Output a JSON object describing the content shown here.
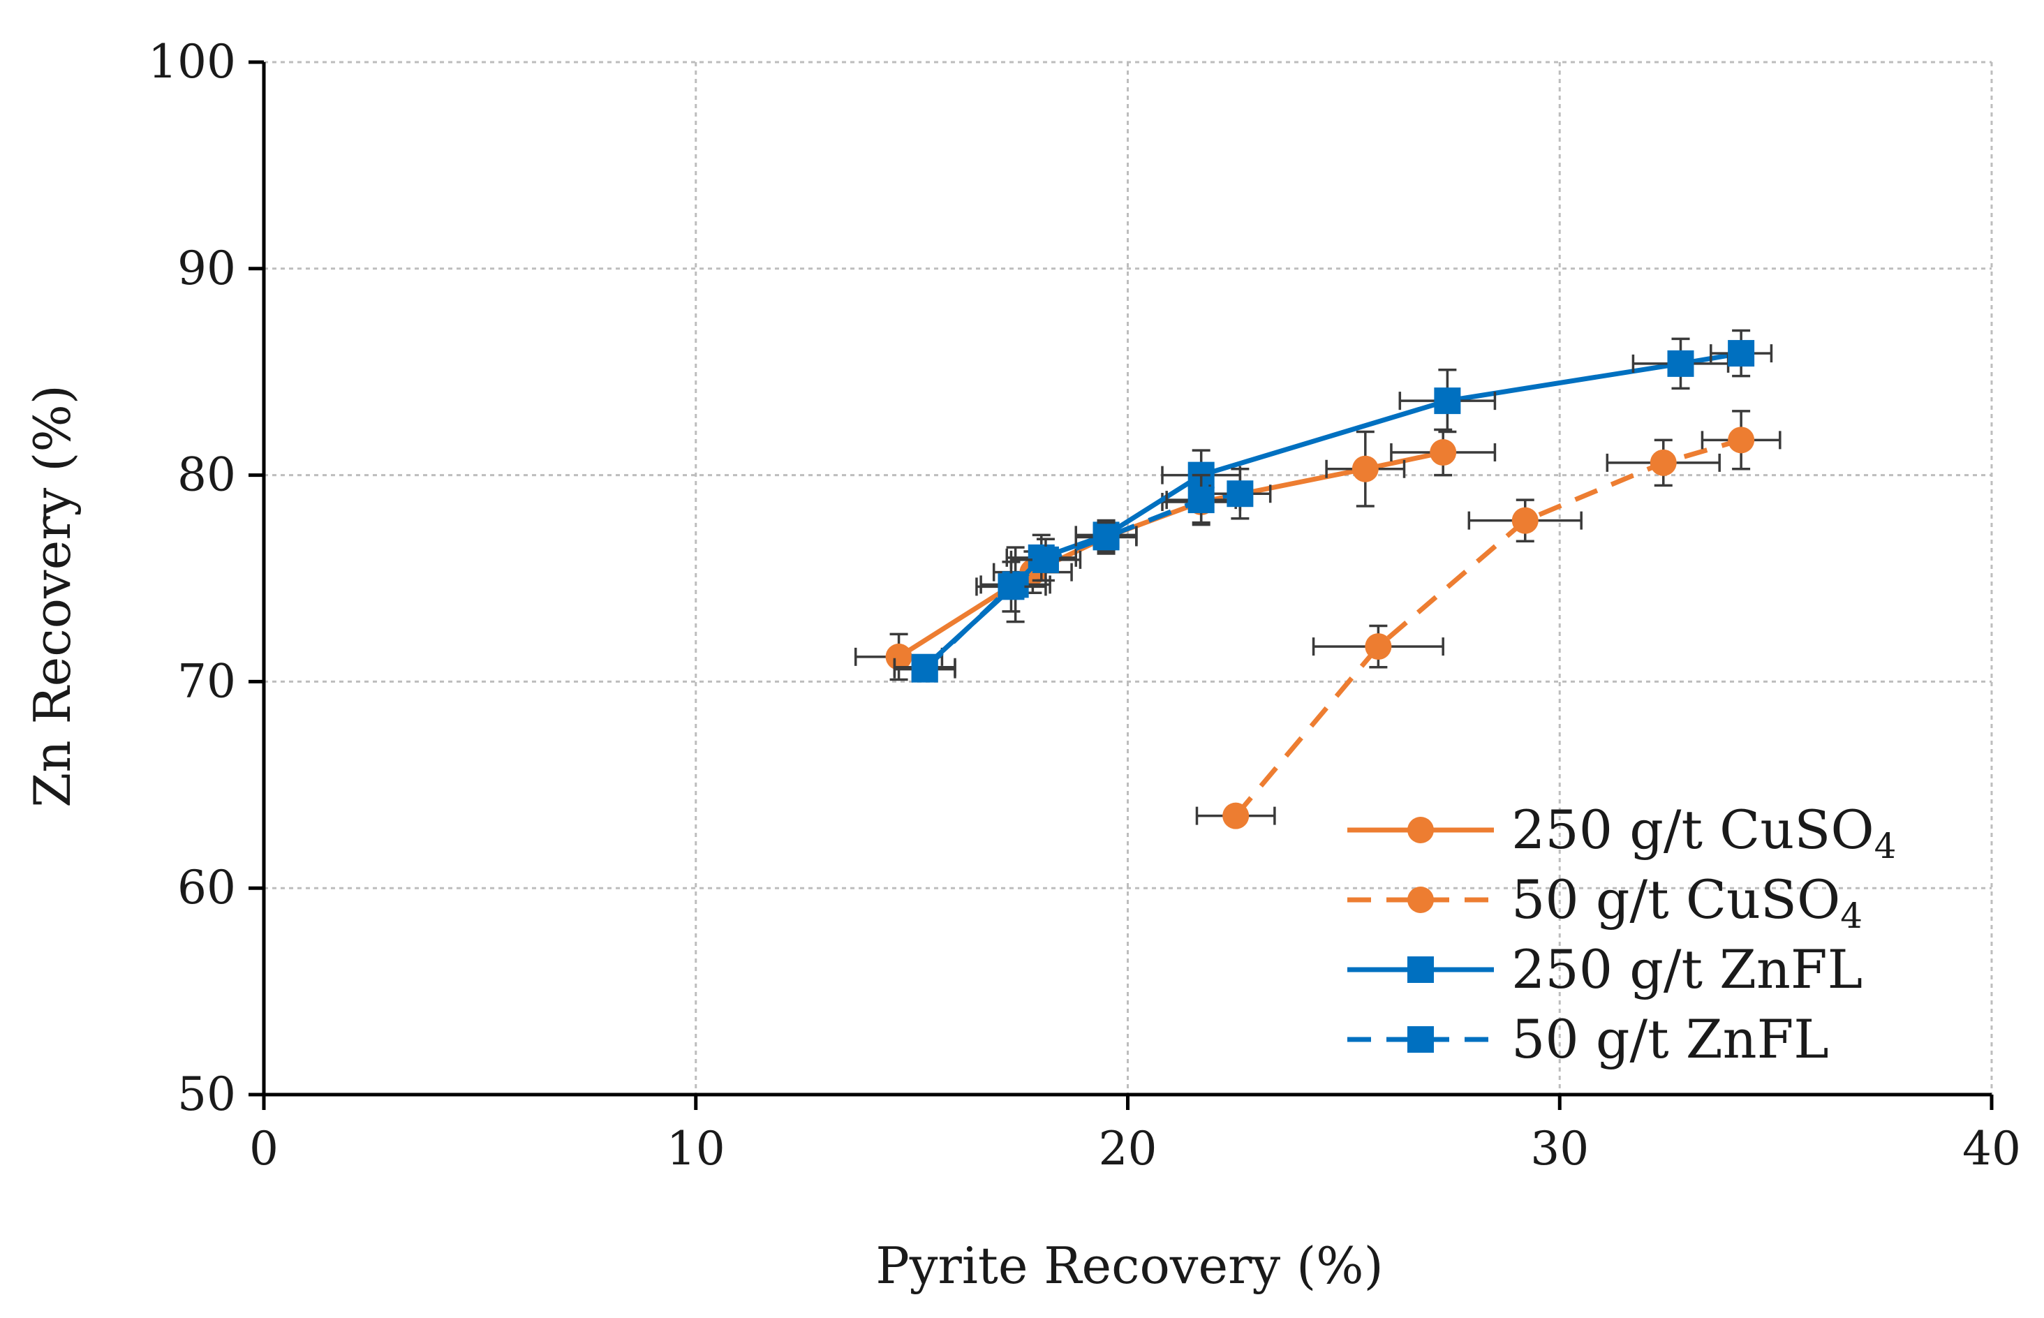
{
  "chart_data": {
    "type": "scatter",
    "title": "",
    "xlabel": "Pyrite Recovery (%)",
    "ylabel": "Zn Recovery (%)",
    "xlim": [
      0,
      40
    ],
    "ylim": [
      50,
      100
    ],
    "xticks": [
      0,
      10,
      20,
      30,
      40
    ],
    "yticks": [
      50,
      60,
      70,
      80,
      90,
      100
    ],
    "xtick_labels": [
      "0",
      "10",
      "20",
      "30",
      "40"
    ],
    "ytick_labels": [
      "50",
      "60",
      "70",
      "80",
      "90",
      "100"
    ],
    "grid": true,
    "legend_position": "bottom-right",
    "error_bars": true,
    "series": [
      {
        "name_main": "250 g/t CuSO",
        "name_sub": "4",
        "color": "#ED7D31",
        "marker": "circle",
        "line": "solid",
        "points": [
          {
            "x": 14.7,
            "y": 71.2,
            "xerr": 1.0,
            "yerr": 1.1
          },
          {
            "x": 17.8,
            "y": 75.3,
            "xerr": 0.9,
            "yerr": 1.0
          },
          {
            "x": 19.5,
            "y": 77.0,
            "xerr": 0.7,
            "yerr": 0.8
          },
          {
            "x": 21.7,
            "y": 78.7,
            "xerr": 0.9,
            "yerr": 1.0
          },
          {
            "x": 25.5,
            "y": 80.3,
            "xerr": 0.9,
            "yerr": 1.8
          },
          {
            "x": 27.3,
            "y": 81.1,
            "xerr": 1.2,
            "yerr": 1.1
          }
        ]
      },
      {
        "name_main": "50 g/t CuSO",
        "name_sub": "4",
        "color": "#ED7D31",
        "marker": "circle",
        "line": "dashed",
        "points": [
          {
            "x": 22.5,
            "y": 63.5,
            "xerr": 0.9,
            "yerr": 0.4
          },
          {
            "x": 25.8,
            "y": 71.7,
            "xerr": 1.5,
            "yerr": 1.0
          },
          {
            "x": 29.2,
            "y": 77.8,
            "xerr": 1.3,
            "yerr": 1.0
          },
          {
            "x": 32.4,
            "y": 80.6,
            "xerr": 1.3,
            "yerr": 1.1
          },
          {
            "x": 34.2,
            "y": 81.7,
            "xerr": 0.9,
            "yerr": 1.4
          }
        ]
      },
      {
        "name_main": "250 g/t ZnFL",
        "name_sub": "",
        "color": "#0070C0",
        "marker": "square",
        "line": "solid",
        "points": [
          {
            "x": 15.3,
            "y": 70.7,
            "xerr": 0.7,
            "yerr": 0.4
          },
          {
            "x": 17.4,
            "y": 74.7,
            "xerr": 0.8,
            "yerr": 1.8
          },
          {
            "x": 18.0,
            "y": 76.0,
            "xerr": 0.8,
            "yerr": 1.1
          },
          {
            "x": 19.5,
            "y": 77.1,
            "xerr": 0.7,
            "yerr": 0.7
          },
          {
            "x": 21.7,
            "y": 80.0,
            "xerr": 0.9,
            "yerr": 1.2
          },
          {
            "x": 27.4,
            "y": 83.6,
            "xerr": 1.1,
            "yerr": 1.5
          },
          {
            "x": 32.8,
            "y": 85.4,
            "xerr": 1.1,
            "yerr": 1.2
          },
          {
            "x": 34.2,
            "y": 85.9,
            "xerr": 0.7,
            "yerr": 1.1
          }
        ]
      },
      {
        "name_main": "50 g/t ZnFL",
        "name_sub": "",
        "color": "#0070C0",
        "marker": "square",
        "line": "dashed",
        "points": [
          {
            "x": 15.3,
            "y": 70.6,
            "xerr": 0.7,
            "yerr": 0.4
          },
          {
            "x": 17.3,
            "y": 74.6,
            "xerr": 0.8,
            "yerr": 1.2
          },
          {
            "x": 18.1,
            "y": 75.9,
            "xerr": 0.8,
            "yerr": 1.0
          },
          {
            "x": 19.5,
            "y": 77.0,
            "xerr": 0.7,
            "yerr": 0.7
          },
          {
            "x": 21.7,
            "y": 78.8,
            "xerr": 0.8,
            "yerr": 1.2
          },
          {
            "x": 22.6,
            "y": 79.1,
            "xerr": 0.7,
            "yerr": 1.2
          }
        ]
      }
    ]
  }
}
